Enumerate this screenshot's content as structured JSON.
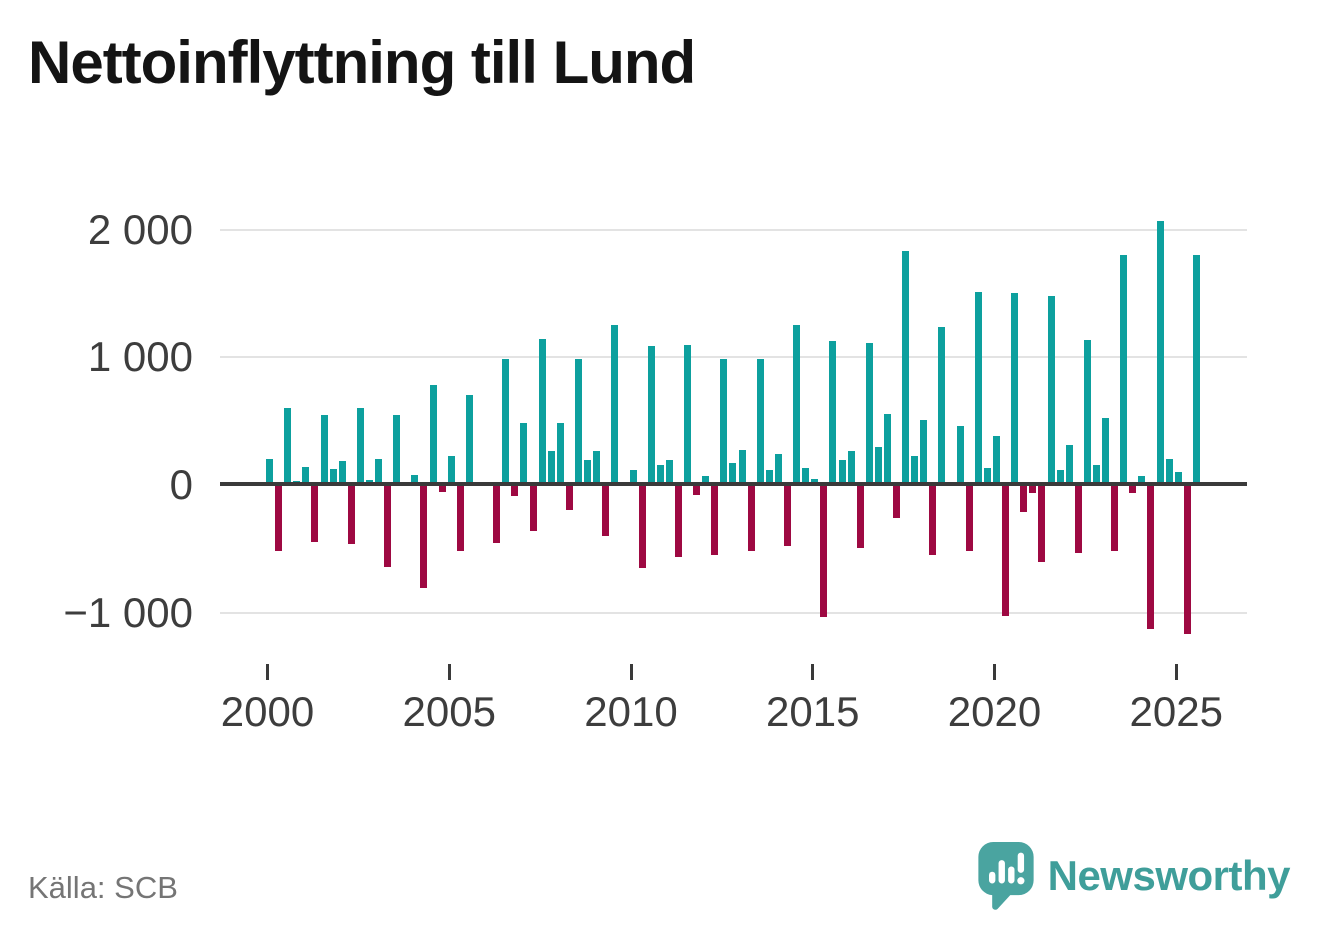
{
  "title": "Nettoinflyttning till Lund",
  "source": "Källa: SCB",
  "branding": {
    "name": "Newsworthy"
  },
  "chart_data": {
    "type": "bar",
    "title": "Nettoinflyttning till Lund",
    "xlabel": "",
    "ylabel": "",
    "x_unit": "quarter",
    "x_range": [
      "2000 Q1",
      "2025 Q3"
    ],
    "ylim": [
      -1400,
      2300
    ],
    "grid": "horizontal",
    "legend": "none",
    "y_ticks": [
      {
        "value": 2000,
        "label": "2 000"
      },
      {
        "value": 1000,
        "label": "1 000"
      },
      {
        "value": 0,
        "label": "0"
      },
      {
        "value": -1000,
        "label": "−1 000"
      }
    ],
    "x_ticks": [
      {
        "value": 2000,
        "label": "2000"
      },
      {
        "value": 2005,
        "label": "2005"
      },
      {
        "value": 2010,
        "label": "2010"
      },
      {
        "value": 2015,
        "label": "2015"
      },
      {
        "value": 2020,
        "label": "2020"
      },
      {
        "value": 2025,
        "label": "2025"
      }
    ],
    "colors": {
      "positive": "#0da09e",
      "negative": "#9e0942"
    },
    "series": [
      {
        "year": 2000,
        "quarters": [
          200,
          -520,
          605,
          30
        ]
      },
      {
        "year": 2001,
        "quarters": [
          140,
          -450,
          550,
          125
        ]
      },
      {
        "year": 2002,
        "quarters": [
          190,
          -465,
          600,
          40
        ]
      },
      {
        "year": 2003,
        "quarters": [
          205,
          -640,
          545,
          15
        ]
      },
      {
        "year": 2004,
        "quarters": [
          75,
          -805,
          785,
          -55
        ]
      },
      {
        "year": 2005,
        "quarters": [
          230,
          -515,
          705,
          0
        ]
      },
      {
        "year": 2006,
        "quarters": [
          20,
          -455,
          990,
          -85
        ]
      },
      {
        "year": 2007,
        "quarters": [
          485,
          -360,
          1140,
          265
        ]
      },
      {
        "year": 2008,
        "quarters": [
          485,
          -195,
          990,
          195
        ]
      },
      {
        "year": 2009,
        "quarters": [
          270,
          -400,
          1250,
          25
        ]
      },
      {
        "year": 2010,
        "quarters": [
          120,
          -650,
          1085,
          160
        ]
      },
      {
        "year": 2011,
        "quarters": [
          195,
          -560,
          1100,
          -75
        ]
      },
      {
        "year": 2012,
        "quarters": [
          70,
          -550,
          990,
          175
        ]
      },
      {
        "year": 2013,
        "quarters": [
          275,
          -520,
          985,
          115
        ]
      },
      {
        "year": 2014,
        "quarters": [
          245,
          -480,
          1250,
          130
        ]
      },
      {
        "year": 2015,
        "quarters": [
          50,
          -1030,
          1130,
          195
        ]
      },
      {
        "year": 2016,
        "quarters": [
          265,
          -495,
          1110,
          295
        ]
      },
      {
        "year": 2017,
        "quarters": [
          555,
          -260,
          1835,
          225
        ]
      },
      {
        "year": 2018,
        "quarters": [
          510,
          -550,
          1235,
          0
        ]
      },
      {
        "year": 2019,
        "quarters": [
          460,
          -520,
          1510,
          135
        ]
      },
      {
        "year": 2020,
        "quarters": [
          385,
          -1025,
          1500,
          -210
        ]
      },
      {
        "year": 2021,
        "quarters": [
          -65,
          -600,
          1480,
          115
        ]
      },
      {
        "year": 2022,
        "quarters": [
          315,
          -535,
          1135,
          160
        ]
      },
      {
        "year": 2023,
        "quarters": [
          525,
          -520,
          1800,
          -60
        ]
      },
      {
        "year": 2024,
        "quarters": [
          70,
          -1130,
          2070,
          200
        ]
      },
      {
        "year": 2025,
        "quarters": [
          105,
          -1170,
          1800
        ]
      }
    ]
  }
}
